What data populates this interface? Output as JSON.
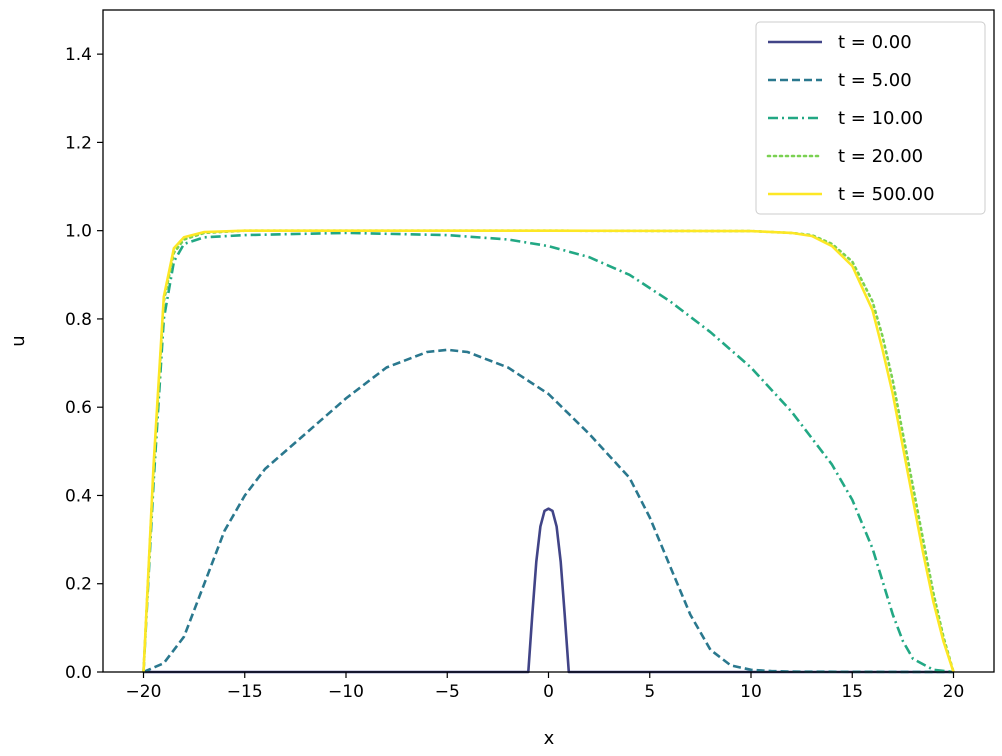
{
  "chart_data": {
    "type": "line",
    "xlabel": "x",
    "ylabel": "u",
    "xlim": [
      -22,
      22
    ],
    "ylim": [
      0.0,
      1.5
    ],
    "xticks": [
      -20,
      -15,
      -10,
      -5,
      0,
      5,
      10,
      15,
      20
    ],
    "xtick_labels": [
      "−20",
      "−15",
      "−10",
      "−5",
      "0",
      "5",
      "10",
      "15",
      "20"
    ],
    "yticks": [
      0.0,
      0.2,
      0.4,
      0.6,
      0.8,
      1.0,
      1.2,
      1.4
    ],
    "ytick_labels": [
      "0.0",
      "0.2",
      "0.4",
      "0.6",
      "0.8",
      "1.0",
      "1.2",
      "1.4"
    ],
    "grid": false,
    "legend_position": "top-right",
    "series": [
      {
        "name": "t = 0.00",
        "color": "#414487",
        "line_style": "solid",
        "x": [
          -20,
          -1,
          -0.8,
          -0.6,
          -0.4,
          -0.2,
          0,
          0.2,
          0.4,
          0.6,
          0.8,
          1,
          20
        ],
        "y": [
          0,
          0,
          0.13,
          0.25,
          0.33,
          0.365,
          0.37,
          0.365,
          0.33,
          0.25,
          0.13,
          0,
          0
        ]
      },
      {
        "name": "t = 5.00",
        "color": "#2a788e",
        "line_style": "dashed",
        "x": [
          -20,
          -19,
          -18,
          -17,
          -16,
          -15,
          -14,
          -12,
          -10,
          -8,
          -6,
          -5,
          -4,
          -2,
          0,
          2,
          4,
          5,
          6,
          7,
          8,
          9,
          10,
          11,
          12,
          15,
          20
        ],
        "y": [
          0,
          0.02,
          0.08,
          0.2,
          0.32,
          0.4,
          0.46,
          0.54,
          0.62,
          0.69,
          0.725,
          0.73,
          0.725,
          0.69,
          0.63,
          0.54,
          0.44,
          0.35,
          0.24,
          0.13,
          0.05,
          0.015,
          0.005,
          0.002,
          0.001,
          0.0005,
          0
        ]
      },
      {
        "name": "t = 10.00",
        "color": "#22a884",
        "line_style": "dashdot",
        "x": [
          -20,
          -19.5,
          -19,
          -18.5,
          -18,
          -17,
          -15,
          -10,
          -5,
          -2,
          0,
          2,
          4,
          6,
          8,
          10,
          12,
          14,
          15,
          16,
          17,
          17.5,
          18,
          19,
          20
        ],
        "y": [
          0,
          0.43,
          0.8,
          0.93,
          0.97,
          0.985,
          0.99,
          0.995,
          0.99,
          0.98,
          0.965,
          0.94,
          0.9,
          0.84,
          0.77,
          0.69,
          0.59,
          0.47,
          0.39,
          0.28,
          0.13,
          0.07,
          0.03,
          0.005,
          0
        ]
      },
      {
        "name": "t = 20.00",
        "color": "#7ad151",
        "line_style": "dotted",
        "x": [
          -20,
          -19.5,
          -19,
          -18.5,
          -18,
          -17,
          -15,
          -10,
          0,
          10,
          12,
          13,
          14,
          15,
          16,
          16.5,
          17,
          17.5,
          18,
          18.5,
          19,
          19.5,
          20
        ],
        "y": [
          0,
          0.46,
          0.84,
          0.95,
          0.98,
          0.995,
          1.0,
          1.0,
          1.0,
          0.999,
          0.995,
          0.99,
          0.97,
          0.93,
          0.84,
          0.76,
          0.66,
          0.54,
          0.42,
          0.3,
          0.18,
          0.08,
          0
        ]
      },
      {
        "name": "t = 500.00",
        "color": "#fde725",
        "line_style": "solid",
        "x": [
          -20,
          -19.5,
          -19,
          -18.5,
          -18,
          -17,
          -15,
          -10,
          0,
          10,
          12,
          13,
          14,
          15,
          16,
          16.5,
          17,
          17.5,
          18,
          18.5,
          19,
          19.5,
          20
        ],
        "y": [
          0,
          0.47,
          0.85,
          0.96,
          0.985,
          0.997,
          1.0,
          1.0,
          1.0,
          0.999,
          0.995,
          0.988,
          0.965,
          0.92,
          0.82,
          0.73,
          0.63,
          0.51,
          0.39,
          0.27,
          0.16,
          0.07,
          0
        ]
      }
    ]
  }
}
